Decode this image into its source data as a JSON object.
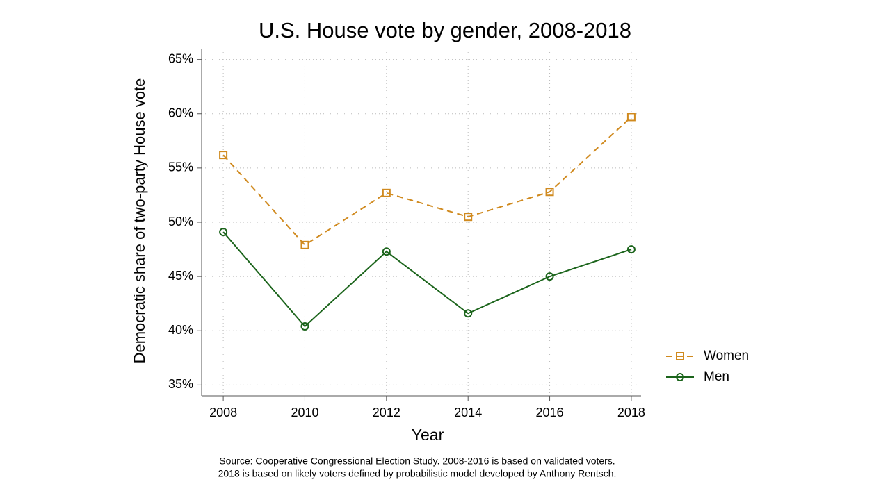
{
  "chart_data": {
    "type": "line",
    "title": "U.S. House vote by gender, 2008-2018",
    "x_label": "Year",
    "y_label": "Democratic share of two-party House vote",
    "x": [
      2008,
      2010,
      2012,
      2014,
      2016,
      2018
    ],
    "series": [
      {
        "name": "Women",
        "color": "#d08a1f",
        "dashed": true,
        "marker": "square",
        "values": [
          56.2,
          47.9,
          52.7,
          50.5,
          52.8,
          59.7
        ]
      },
      {
        "name": "Men",
        "color": "#1b641b",
        "dashed": false,
        "marker": "circle",
        "values": [
          49.1,
          40.4,
          47.3,
          41.6,
          45.0,
          47.5
        ]
      }
    ],
    "xlim": [
      2007.47,
      2018.24
    ],
    "xticks": [
      2008,
      2010,
      2012,
      2014,
      2016,
      2018
    ],
    "ylim": [
      34,
      66
    ],
    "yticks": [
      {
        "value": 35,
        "label": "35%"
      },
      {
        "value": 40,
        "label": "40%"
      },
      {
        "value": 45,
        "label": "45%"
      },
      {
        "value": 50,
        "label": "50%"
      },
      {
        "value": 55,
        "label": "55%"
      },
      {
        "value": 60,
        "label": "60%"
      },
      {
        "value": 65,
        "label": "65%"
      }
    ],
    "grid": true,
    "legend": "right",
    "notes": [
      "Source: Cooperative Congressional Election Study. 2008-2016 is based on validated voters.",
      "2018 is based on likely voters defined by probabilistic model developed by Anthony Rentsch."
    ]
  }
}
